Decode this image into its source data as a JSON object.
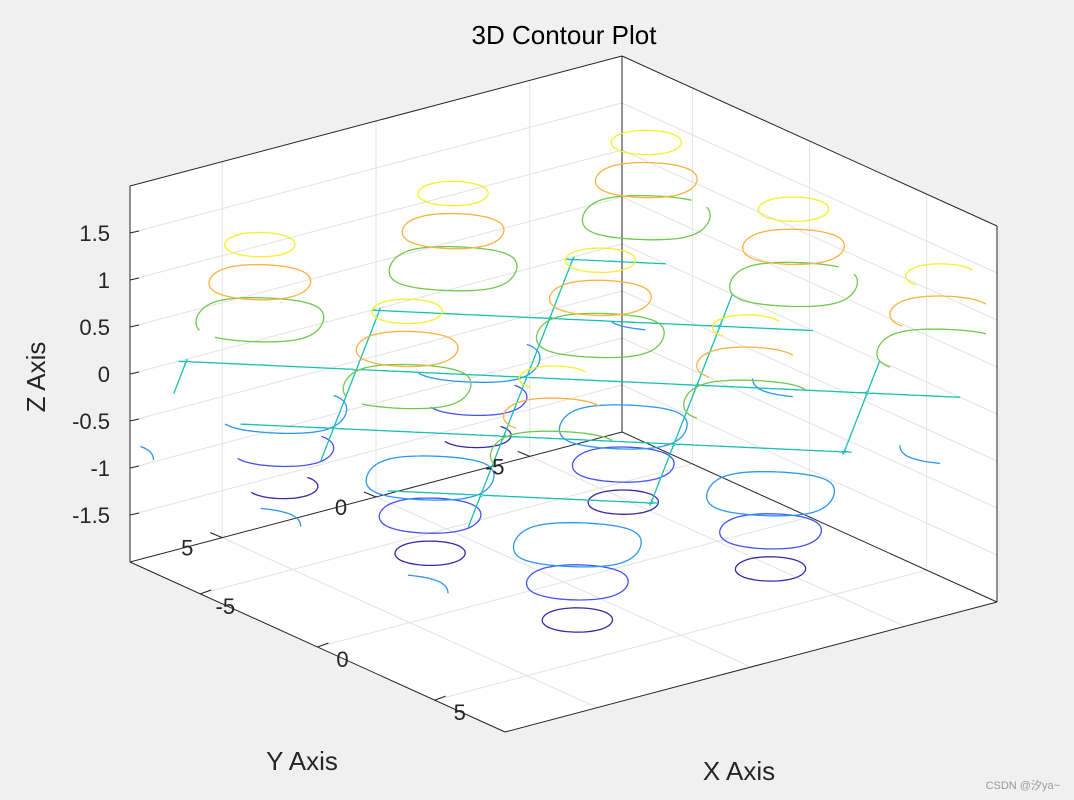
{
  "chart_data": {
    "type": "contour3",
    "title": "3D Contour Plot",
    "xlabel": "X Axis",
    "ylabel": "Y Axis",
    "zlabel": "Z Axis",
    "xlim": [
      -8,
      8
    ],
    "ylim": [
      -8,
      8
    ],
    "zlim": [
      -2,
      2
    ],
    "xticks": [
      {
        "value": -5,
        "label": "-5"
      },
      {
        "value": 0,
        "label": "0"
      },
      {
        "value": 5,
        "label": "5"
      }
    ],
    "yticks": [
      {
        "value": -5,
        "label": "-5"
      },
      {
        "value": 0,
        "label": "0"
      },
      {
        "value": 5,
        "label": "5"
      }
    ],
    "zticks": [
      {
        "value": -1.5,
        "label": "-1.5"
      },
      {
        "value": -1,
        "label": "-1"
      },
      {
        "value": -0.5,
        "label": "-0.5"
      },
      {
        "value": 0,
        "label": "0"
      },
      {
        "value": 0.5,
        "label": "0.5"
      },
      {
        "value": 1,
        "label": "1"
      },
      {
        "value": 1.5,
        "label": "1.5"
      }
    ],
    "grid": true,
    "box": true,
    "surface": "z = sin(x) + cos(y)",
    "levels": [
      -1.6,
      -1.2,
      -0.8,
      0,
      0.8,
      1.2,
      1.6
    ],
    "colormap": [
      "#3e26a8",
      "#4353f6",
      "#2c97f0",
      "#17bfb4",
      "#6fc94d",
      "#fdb13f",
      "#f5f027"
    ]
  },
  "watermark": "CSDN @汐ya~"
}
